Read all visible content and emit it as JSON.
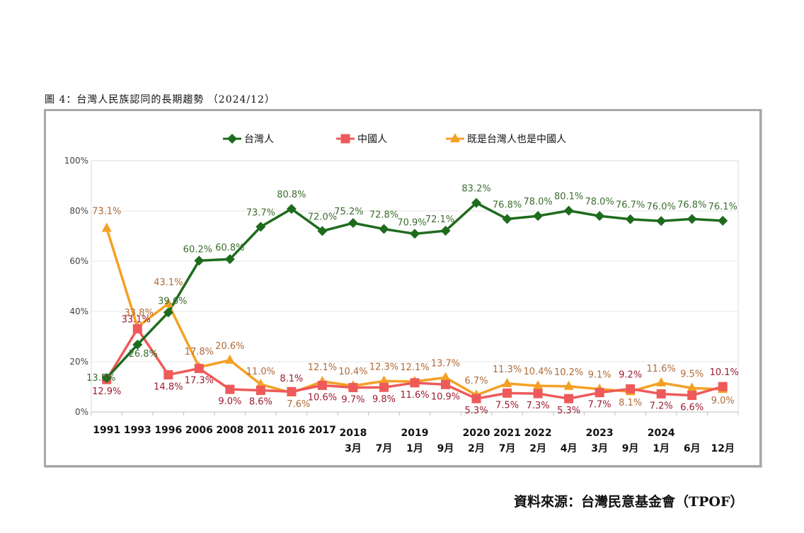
{
  "figure_title": "圖 4：台灣人民族認同的長期趨勢 （2024/12）",
  "source": "資料來源：台灣民意基金會（TPOF）",
  "chart_data": {
    "type": "line",
    "title": "台灣人民族認同的長期趨勢 (2024/12)",
    "xlabel": "",
    "ylabel": "",
    "ylim": [
      0,
      100
    ],
    "yticks": [
      "0%",
      "20%",
      "40%",
      "60%",
      "80%",
      "100%"
    ],
    "ytick_values": [
      0,
      20,
      40,
      60,
      80,
      100
    ],
    "grid": true,
    "legend_position": "top-center",
    "x_top": [
      "1991",
      "1993",
      "1996",
      "2006",
      "2008",
      "2011",
      "2016",
      "2017",
      "2018",
      "",
      "2019",
      "",
      "2020",
      "2021",
      "2022",
      "",
      "2023",
      "",
      "2024",
      "",
      ""
    ],
    "x_bottom": [
      "",
      "",
      "",
      "",
      "",
      "",
      "",
      "",
      "3月",
      "7月",
      "1月",
      "9月",
      "2月",
      "7月",
      "2月",
      "4月",
      "3月",
      "9月",
      "1月",
      "6月",
      "12月"
    ],
    "series": [
      {
        "name": "台灣人",
        "color": "#1e6b1e",
        "label_color": "#3a6e2e",
        "marker": "diamond",
        "values": [
          13.5,
          26.8,
          39.6,
          60.2,
          60.8,
          73.7,
          80.8,
          72.0,
          75.2,
          72.8,
          70.9,
          72.1,
          83.2,
          76.8,
          78.0,
          80.1,
          78.0,
          76.7,
          76.0,
          76.8,
          76.1
        ]
      },
      {
        "name": "中國人",
        "color": "#ee5a5a",
        "label_color": "#9b1b30",
        "marker": "square",
        "values": [
          12.9,
          33.1,
          14.8,
          17.3,
          9.0,
          8.6,
          8.1,
          10.6,
          9.7,
          9.8,
          11.6,
          10.9,
          5.3,
          7.5,
          7.3,
          5.3,
          7.7,
          9.2,
          7.2,
          6.6,
          10.1
        ]
      },
      {
        "name": "既是台灣人也是中國人",
        "color": "#f4a024",
        "label_color": "#b06a38",
        "marker": "triangle",
        "values": [
          73.1,
          33.8,
          43.1,
          17.8,
          20.6,
          11.0,
          7.6,
          12.1,
          10.4,
          12.3,
          12.1,
          13.7,
          6.7,
          11.3,
          10.4,
          10.2,
          9.1,
          8.1,
          11.6,
          9.5,
          9.0
        ]
      }
    ]
  }
}
